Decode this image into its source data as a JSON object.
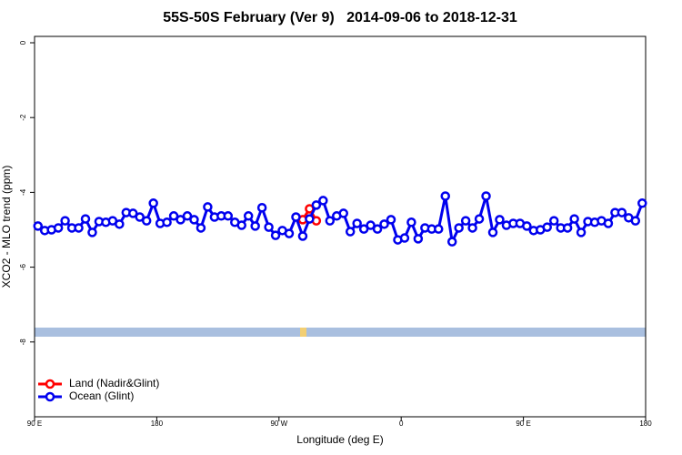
{
  "chart_data": {
    "type": "line",
    "title": "55S-50S February (Ver 9)   2014-09-06 to 2018-12-31",
    "x_label": "Longitude (deg E)",
    "y_label": "XCO2 - MLO trend (ppm)",
    "xlim": [
      90,
      540
    ],
    "ylim": [
      -10,
      0.17
    ],
    "xticks": [
      {
        "value": 90,
        "label": "90 E"
      },
      {
        "value": 180,
        "label": "180"
      },
      {
        "value": 270,
        "label": "90 W"
      },
      {
        "value": 360,
        "label": "0"
      },
      {
        "value": 450,
        "label": "90 E"
      },
      {
        "value": 540,
        "label": "180"
      }
    ],
    "yticks": [
      0,
      -2,
      -4,
      -6,
      -8
    ],
    "legend_position": "bottom-left",
    "series": [
      {
        "name": "Land (Nadir&Glint)",
        "color": "#ff0000",
        "x": [
          287.5,
          292.5,
          297.5
        ],
        "values": [
          -4.73,
          -4.44,
          -4.76
        ]
      },
      {
        "name": "Ocean (Glint)",
        "color": "#0000ee",
        "x": [
          92.5,
          97.5,
          102.5,
          107.5,
          112.5,
          117.5,
          122.5,
          127.5,
          132.5,
          137.5,
          142.5,
          147.5,
          152.5,
          157.5,
          162.5,
          167.5,
          172.5,
          177.5,
          182.5,
          187.5,
          192.5,
          197.5,
          202.5,
          207.5,
          212.5,
          217.5,
          222.5,
          227.5,
          232.5,
          237.5,
          242.5,
          247.5,
          252.5,
          257.5,
          262.5,
          267.5,
          272.5,
          277.5,
          282.5,
          287.5,
          292.5,
          297.5,
          302.5,
          307.5,
          312.5,
          317.5,
          322.5,
          327.5,
          332.5,
          337.5,
          342.5,
          347.5,
          352.5,
          357.5,
          362.5,
          367.5,
          372.5,
          377.5,
          382.5,
          387.5,
          392.5,
          397.5,
          402.5,
          407.5,
          412.5,
          417.5,
          422.5,
          427.5,
          432.5,
          437.5,
          442.5,
          447.5,
          452.5,
          457.5,
          462.5,
          467.5,
          472.5,
          477.5,
          482.5,
          487.5,
          492.5,
          497.5,
          502.5,
          507.5,
          512.5,
          517.5,
          522.5,
          527.5,
          532.5,
          537.5
        ],
        "values": [
          -4.9,
          -5.02,
          -5.0,
          -4.95,
          -4.76,
          -4.95,
          -4.95,
          -4.71,
          -5.07,
          -4.78,
          -4.8,
          -4.76,
          -4.85,
          -4.54,
          -4.56,
          -4.66,
          -4.76,
          -4.29,
          -4.83,
          -4.8,
          -4.63,
          -4.73,
          -4.63,
          -4.73,
          -4.95,
          -4.39,
          -4.66,
          -4.63,
          -4.63,
          -4.8,
          -4.88,
          -4.63,
          -4.9,
          -4.41,
          -4.93,
          -5.15,
          -5.02,
          -5.1,
          -4.66,
          -5.17,
          -4.71,
          -4.34,
          -4.22,
          -4.76,
          -4.63,
          -4.56,
          -5.05,
          -4.83,
          -4.98,
          -4.88,
          -4.98,
          -4.85,
          -4.73,
          -5.27,
          -5.22,
          -4.8,
          -5.24,
          -4.95,
          -4.98,
          -4.98,
          -4.1,
          -5.32,
          -4.95,
          -4.76,
          -4.95,
          -4.71,
          -4.1,
          -5.07,
          -4.73,
          -4.88,
          -4.83,
          -4.83,
          -4.9,
          -5.02,
          -5.0,
          -4.93,
          -4.76,
          -4.95,
          -4.95,
          -4.71,
          -5.07,
          -4.78,
          -4.8,
          -4.76,
          -4.83,
          -4.54,
          -4.54,
          -4.68,
          -4.76,
          -4.29
        ]
      }
    ]
  }
}
